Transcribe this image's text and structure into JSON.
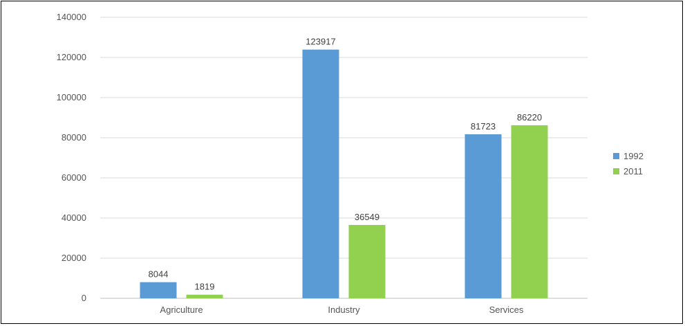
{
  "chart_data": {
    "type": "bar",
    "categories": [
      "Agriculture",
      "Industry",
      "Services"
    ],
    "series": [
      {
        "name": "1992",
        "color": "#5b9bd5",
        "values": [
          8044,
          123917,
          81723
        ],
        "labels": [
          "8044",
          "123917",
          "81723"
        ]
      },
      {
        "name": "2011",
        "color": "#92d050",
        "values": [
          1819,
          36549,
          86220
        ],
        "labels": [
          "1819",
          "36549",
          "86220"
        ]
      }
    ],
    "ylim": [
      0,
      140000
    ],
    "yticks": [
      0,
      20000,
      40000,
      60000,
      80000,
      100000,
      120000,
      140000
    ],
    "ytick_labels": [
      "0",
      "20000",
      "40000",
      "60000",
      "80000",
      "100000",
      "120000",
      "140000"
    ],
    "grid": true,
    "legend_position": "right",
    "title": "",
    "xlabel": "",
    "ylabel": ""
  }
}
